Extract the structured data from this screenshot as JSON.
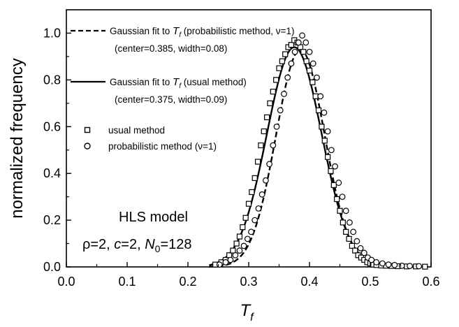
{
  "chart_data": {
    "type": "scatter",
    "xlabel": "T",
    "xlabel_sub": "f",
    "ylabel": "normalized frequency",
    "xlim": [
      0.0,
      0.6
    ],
    "ylim": [
      0.0,
      1.1
    ],
    "xticks": [
      "0.0",
      "0.1",
      "0.2",
      "0.3",
      "0.4",
      "0.5",
      "0.6"
    ],
    "yticks": [
      "0.0",
      "0.2",
      "0.4",
      "0.6",
      "0.8",
      "1.0"
    ],
    "grid": false,
    "legend": {
      "placement": "top-left",
      "entries": [
        {
          "style": "dashed-line",
          "text_pre": "Gaussian fit to ",
          "sym": "T",
          "sub": "f",
          "text_post": " (probabilistic method, ν=1)",
          "params": "(center=0.385, width=0.08)"
        },
        {
          "style": "solid-line",
          "text_pre": "Gaussian fit to ",
          "sym": "T",
          "sub": "f",
          "text_post": " (usual method)",
          "params": "(center=0.375, width=0.09)"
        },
        {
          "style": "open-square",
          "text": "usual method"
        },
        {
          "style": "open-circle",
          "text": "probabilistic method (ν=1)"
        }
      ]
    },
    "annotation": {
      "line1": "HLS model",
      "line2_parts": [
        "ρ=2, ",
        "c",
        "=2, ",
        "N",
        "0",
        "=128"
      ]
    },
    "series": [
      {
        "name": "usual method",
        "marker": "open-square",
        "x": [
          0.245,
          0.255,
          0.262,
          0.268,
          0.274,
          0.28,
          0.285,
          0.29,
          0.295,
          0.3,
          0.305,
          0.31,
          0.315,
          0.32,
          0.325,
          0.33,
          0.335,
          0.34,
          0.345,
          0.35,
          0.355,
          0.36,
          0.365,
          0.37,
          0.375,
          0.38,
          0.385,
          0.39,
          0.395,
          0.4,
          0.405,
          0.41,
          0.415,
          0.42,
          0.425,
          0.43,
          0.435,
          0.44,
          0.445,
          0.45,
          0.455,
          0.46,
          0.465,
          0.47,
          0.475,
          0.48,
          0.485,
          0.49,
          0.495,
          0.5,
          0.505,
          0.51,
          0.518,
          0.526,
          0.535,
          0.545,
          0.56,
          0.575,
          0.59
        ],
        "y": [
          0.01,
          0.02,
          0.03,
          0.05,
          0.07,
          0.1,
          0.13,
          0.17,
          0.21,
          0.27,
          0.32,
          0.38,
          0.45,
          0.52,
          0.58,
          0.64,
          0.7,
          0.75,
          0.8,
          0.85,
          0.88,
          0.91,
          0.94,
          0.95,
          0.97,
          0.96,
          0.94,
          0.92,
          0.88,
          0.84,
          0.79,
          0.73,
          0.67,
          0.6,
          0.54,
          0.47,
          0.41,
          0.35,
          0.29,
          0.24,
          0.19,
          0.15,
          0.12,
          0.09,
          0.07,
          0.05,
          0.04,
          0.03,
          0.02,
          0.015,
          0.01,
          0.008,
          0.006,
          0.005,
          0.004,
          0.003,
          0.002,
          0.002,
          0.001
        ]
      },
      {
        "name": "probabilistic method (ν=1)",
        "marker": "open-circle",
        "x": [
          0.252,
          0.262,
          0.27,
          0.278,
          0.285,
          0.292,
          0.298,
          0.304,
          0.31,
          0.316,
          0.322,
          0.328,
          0.334,
          0.34,
          0.346,
          0.352,
          0.358,
          0.364,
          0.37,
          0.376,
          0.382,
          0.388,
          0.394,
          0.4,
          0.406,
          0.412,
          0.418,
          0.424,
          0.43,
          0.436,
          0.442,
          0.448,
          0.454,
          0.46,
          0.466,
          0.472,
          0.478,
          0.484,
          0.49,
          0.496,
          0.502,
          0.51,
          0.52,
          0.53,
          0.54,
          0.552,
          0.565,
          0.58
        ],
        "y": [
          0.01,
          0.02,
          0.03,
          0.05,
          0.07,
          0.09,
          0.12,
          0.15,
          0.2,
          0.25,
          0.31,
          0.37,
          0.44,
          0.52,
          0.6,
          0.67,
          0.74,
          0.81,
          0.87,
          0.92,
          0.96,
          0.99,
          0.96,
          0.92,
          0.87,
          0.81,
          0.73,
          0.66,
          0.58,
          0.5,
          0.43,
          0.36,
          0.3,
          0.24,
          0.19,
          0.15,
          0.11,
          0.08,
          0.06,
          0.04,
          0.03,
          0.02,
          0.015,
          0.01,
          0.008,
          0.005,
          0.004,
          0.003
        ]
      },
      {
        "name": "Gaussian fit (probabilistic method)",
        "style": "dashed-line",
        "center": 0.385,
        "width": 0.08,
        "amplitude": 0.93
      },
      {
        "name": "Gaussian fit (usual method)",
        "style": "solid-line",
        "center": 0.375,
        "width": 0.09,
        "amplitude": 0.94
      }
    ]
  }
}
